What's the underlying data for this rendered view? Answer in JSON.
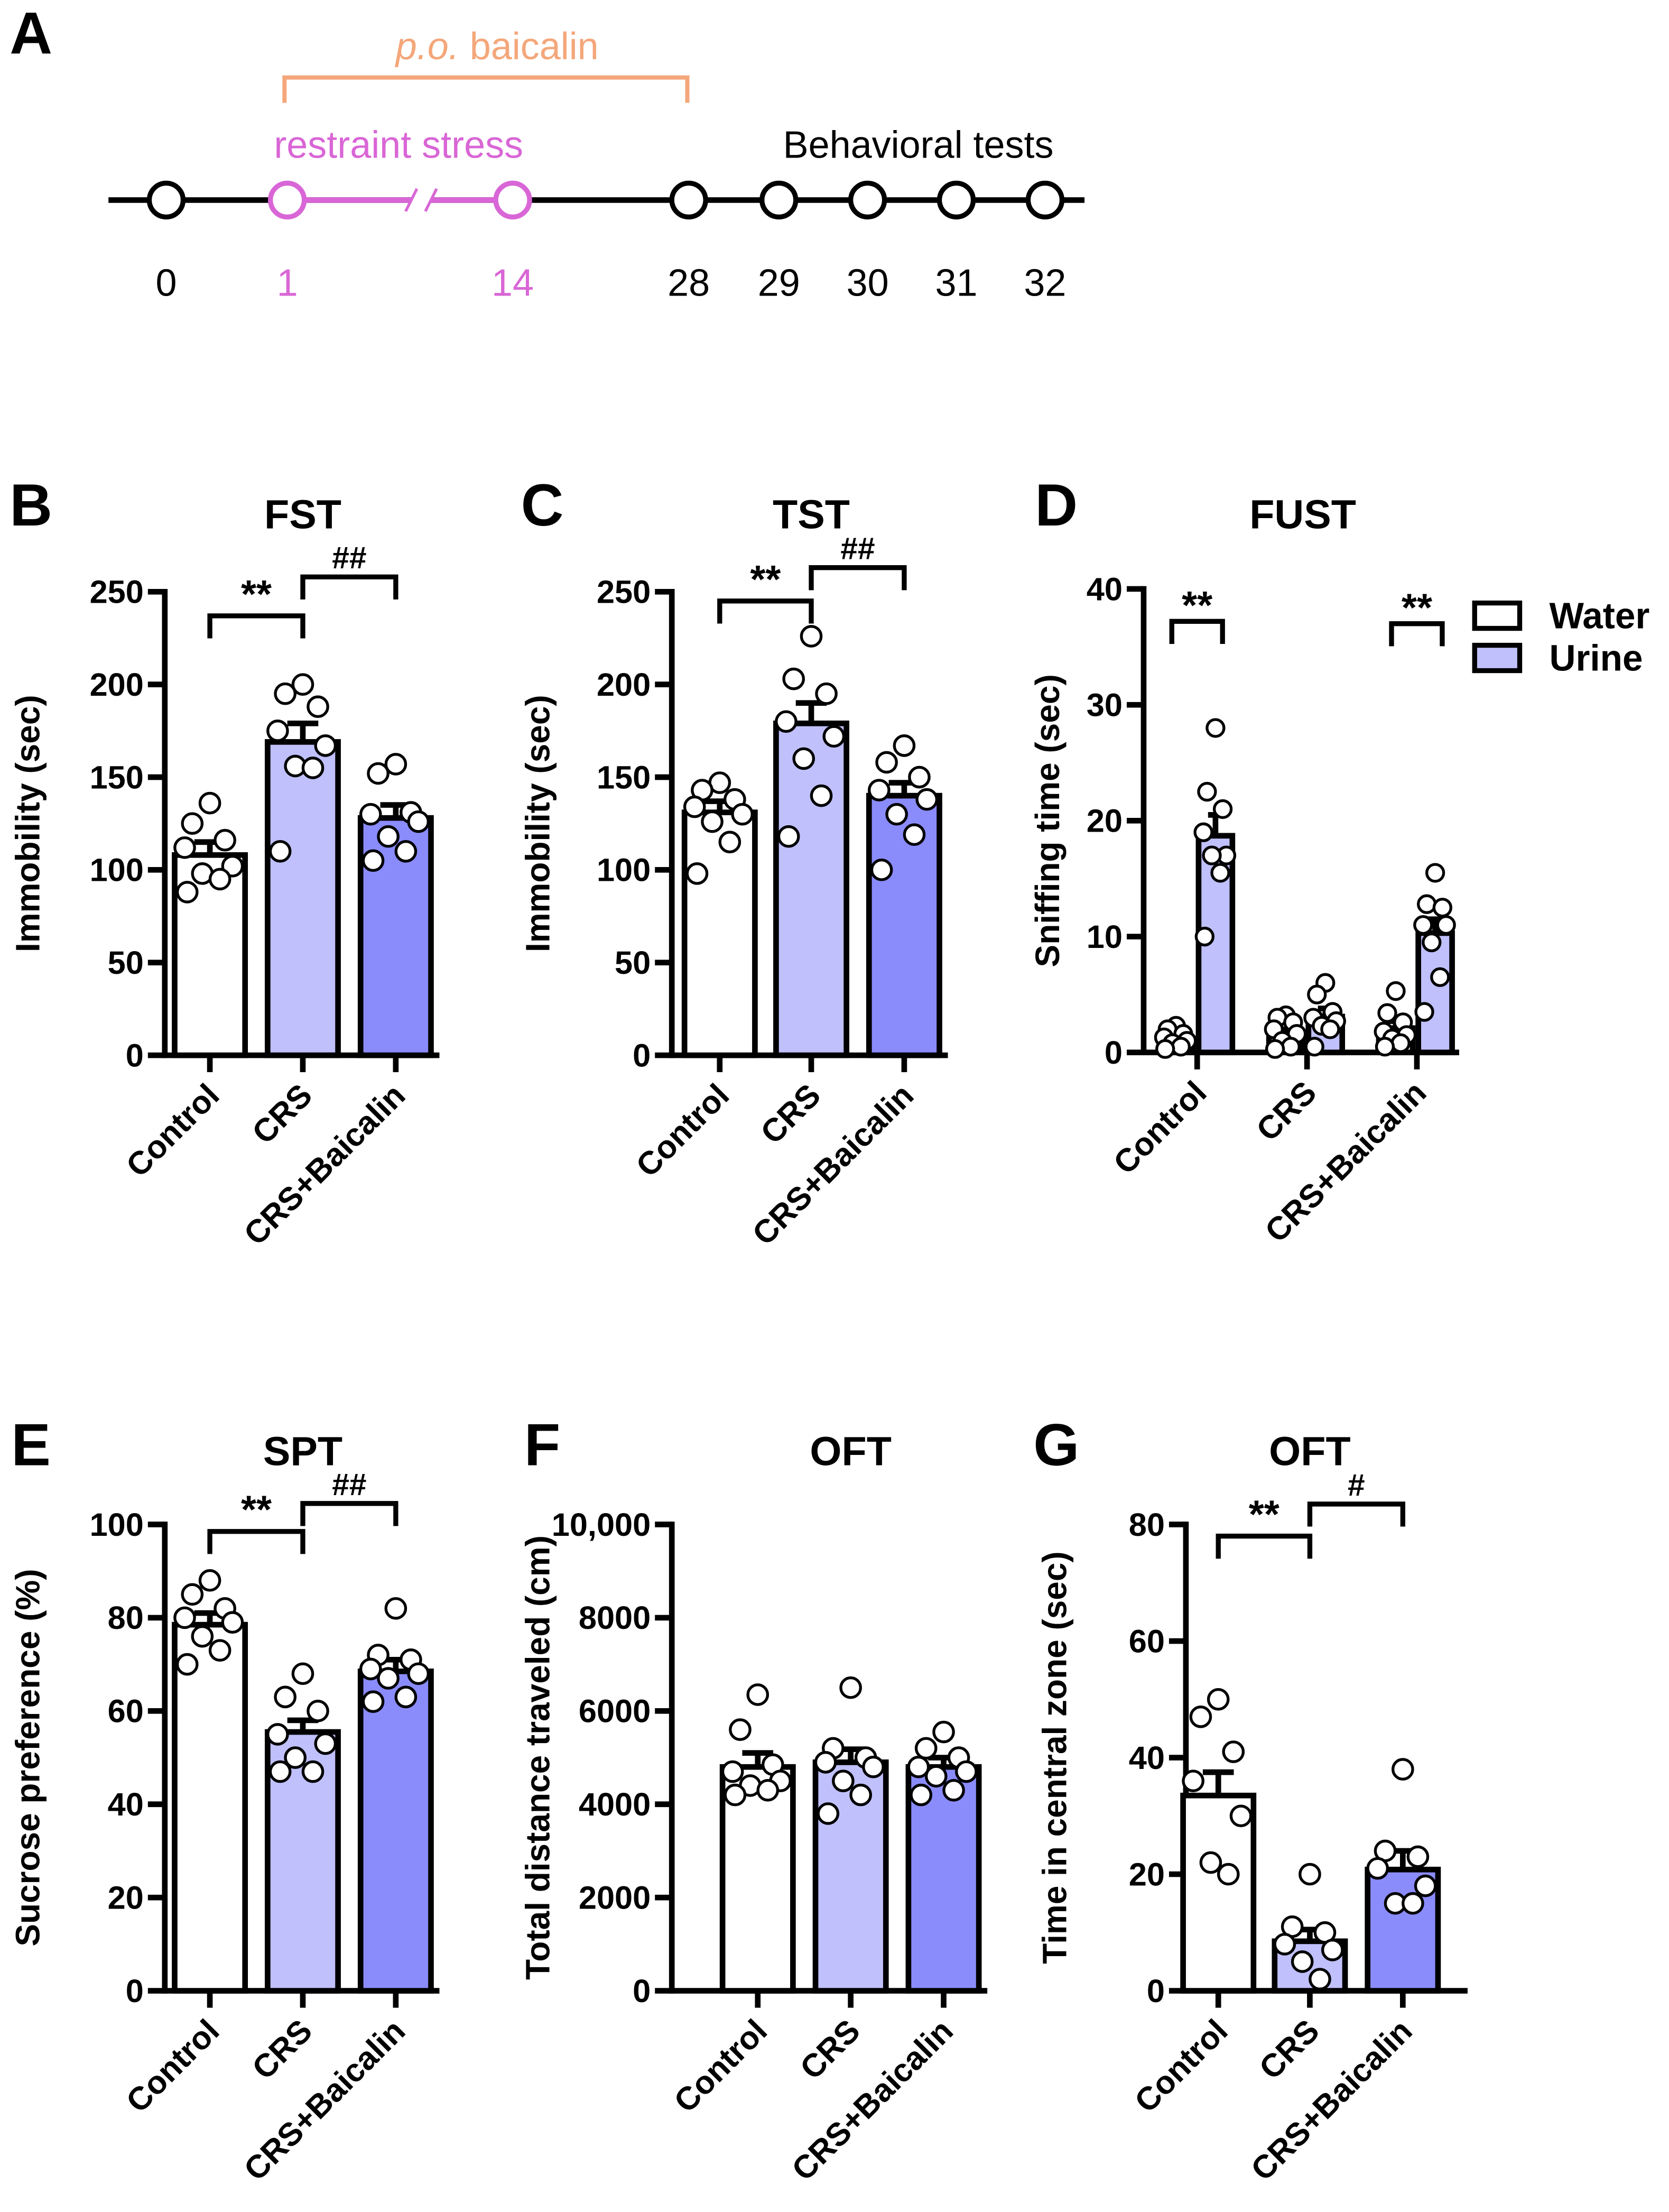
{
  "colors": {
    "control": "#ffffff",
    "crs": "#c0c0fc",
    "baicalin": "#8b8cfb",
    "stress": "#d966d6",
    "drug": "#f4a77a",
    "axis": "#000000"
  },
  "timeline": {
    "letter": "A",
    "drug_label_italic": "p.o.",
    "drug_label": " baicalin",
    "stress_label": "restraint stress",
    "tests_label": "Behavioral tests",
    "days": [
      "0",
      "1",
      "14",
      "28",
      "29",
      "30",
      "31",
      "32"
    ]
  },
  "chart_data": [
    {
      "letter": "B",
      "type": "bar",
      "title": "FST",
      "ylabel": "Immobility (sec)",
      "ylim": [
        0,
        250
      ],
      "yticks": [
        "0",
        "50",
        "100",
        "150",
        "200",
        "250"
      ],
      "categories": [
        "Control",
        "CRS",
        "CRS+Baicalin"
      ],
      "values": [
        108,
        169,
        128
      ],
      "sem": [
        7,
        10,
        7
      ],
      "points": [
        [
          136,
          125,
          116,
          112,
          102,
          98,
          95,
          88
        ],
        [
          200,
          195,
          188,
          175,
          167,
          156,
          155,
          110
        ],
        [
          157,
          152,
          131,
          130,
          126,
          118,
          110,
          105
        ]
      ],
      "significance": [
        {
          "from": 0,
          "to": 1,
          "label": "**",
          "y": 237
        },
        {
          "from": 1,
          "to": 2,
          "label": "##",
          "y": 258
        }
      ]
    },
    {
      "letter": "C",
      "type": "bar",
      "title": "TST",
      "ylabel": "Immobility (sec)",
      "ylim": [
        0,
        250
      ],
      "yticks": [
        "0",
        "50",
        "100",
        "150",
        "200",
        "250"
      ],
      "categories": [
        "Control",
        "CRS",
        "CRS+Baicalin"
      ],
      "values": [
        131,
        179,
        140
      ],
      "sem": [
        6,
        11,
        7
      ],
      "points": [
        [
          147,
          143,
          138,
          134,
          130,
          126,
          115,
          98
        ],
        [
          226,
          203,
          195,
          180,
          172,
          160,
          140,
          118
        ],
        [
          167,
          158,
          150,
          143,
          138,
          130,
          119,
          100
        ]
      ],
      "significance": [
        {
          "from": 0,
          "to": 1,
          "label": "**",
          "y": 245
        },
        {
          "from": 1,
          "to": 2,
          "label": "##",
          "y": 263
        }
      ]
    },
    {
      "letter": "D",
      "type": "grouped-bar",
      "title": "FUST",
      "ylabel": "Sniffing time (sec)",
      "ylim": [
        0,
        40
      ],
      "yticks": [
        "0",
        "10",
        "20",
        "30",
        "40"
      ],
      "categories": [
        "Control",
        "CRS",
        "CRS+Baicalin"
      ],
      "series": [
        {
          "name": "Water",
          "values": [
            1.2,
            1.6,
            2.1
          ],
          "sem": [
            0.3,
            0.4,
            0.6
          ],
          "points": [
            [
              2.3,
              2,
              1.6,
              1.3,
              1,
              0.8,
              0.5,
              0.3
            ],
            [
              3.2,
              3,
              2.6,
              2,
              1.6,
              1,
              0.5,
              0.3
            ],
            [
              5.3,
              3.4,
              2.6,
              1.8,
              1.5,
              1.2,
              0.8,
              0.5
            ]
          ]
        },
        {
          "name": "Urine",
          "values": [
            18.7,
            3.1,
            10.3
          ],
          "sem": [
            1.8,
            0.7,
            1.2
          ],
          "points": [
            [
              28,
              22.5,
              21,
              19,
              17,
              17,
              15.5,
              10
            ],
            [
              6,
              5,
              3.5,
              3,
              2.7,
              2.3,
              2,
              0.5
            ],
            [
              15.5,
              12.8,
              12.5,
              11,
              11,
              9.5,
              6.5,
              3.5
            ]
          ]
        }
      ],
      "legend": "top-right",
      "significance": [
        {
          "category": 0,
          "label": "**",
          "y": 37.2
        },
        {
          "category": 2,
          "label": "**",
          "y": 37
        }
      ]
    },
    {
      "letter": "E",
      "type": "bar",
      "title": "SPT",
      "ylabel": "Sucrose preference (%)",
      "ylim": [
        0,
        100
      ],
      "yticks": [
        "0",
        "20",
        "40",
        "60",
        "80",
        "100"
      ],
      "categories": [
        "Control",
        "CRS",
        "CRS+Baicalin"
      ],
      "values": [
        78.5,
        55.5,
        68.5
      ],
      "sem": [
        2.5,
        2.5,
        2.5
      ],
      "points": [
        [
          88,
          85,
          82,
          80,
          79,
          76,
          73,
          70
        ],
        [
          68,
          63,
          60,
          55,
          53,
          50,
          47,
          47
        ],
        [
          82,
          72,
          71,
          69,
          68,
          67,
          63,
          62
        ]
      ],
      "significance": [
        {
          "from": 0,
          "to": 1,
          "label": "**",
          "y": 98.5
        },
        {
          "from": 1,
          "to": 2,
          "label": "##",
          "y": 104.5
        }
      ]
    },
    {
      "letter": "F",
      "type": "bar",
      "title": "OFT",
      "ylabel": "Total distance traveled (cm)",
      "ylim": [
        0,
        10000
      ],
      "yticks": [
        "0",
        "2000",
        "4000",
        "6000",
        "8000",
        "10,000"
      ],
      "categories": [
        "Control",
        "CRS",
        "CRS+Baicalin"
      ],
      "values": [
        4800,
        4900,
        4800
      ],
      "sem": [
        300,
        280,
        200
      ],
      "points": [
        [
          6350,
          5600,
          4850,
          4700,
          4500,
          4400,
          4300,
          4200
        ],
        [
          6500,
          5200,
          5000,
          4900,
          4800,
          4500,
          4200,
          3800
        ],
        [
          5550,
          5200,
          5000,
          4800,
          4700,
          4600,
          4300,
          4200
        ]
      ],
      "significance": []
    },
    {
      "letter": "G",
      "type": "bar",
      "title": "OFT",
      "ylabel": "Time in central zone (sec)",
      "ylim": [
        0,
        80
      ],
      "yticks": [
        "0",
        "20",
        "40",
        "60",
        "80"
      ],
      "categories": [
        "Control",
        "CRS",
        "CRS+Baicalin"
      ],
      "values": [
        33.5,
        8.5,
        20.8
      ],
      "sem": [
        4,
        2,
        3.2
      ],
      "points": [
        [
          50,
          47,
          41,
          36,
          30,
          22,
          20
        ],
        [
          20,
          11,
          10,
          8,
          7,
          5,
          2
        ],
        [
          38,
          24,
          23,
          21,
          18,
          15,
          15
        ]
      ],
      "significance": [
        {
          "from": 0,
          "to": 1,
          "label": "**",
          "y": 78
        },
        {
          "from": 1,
          "to": 2,
          "label": "#",
          "y": 83.5
        }
      ]
    }
  ]
}
